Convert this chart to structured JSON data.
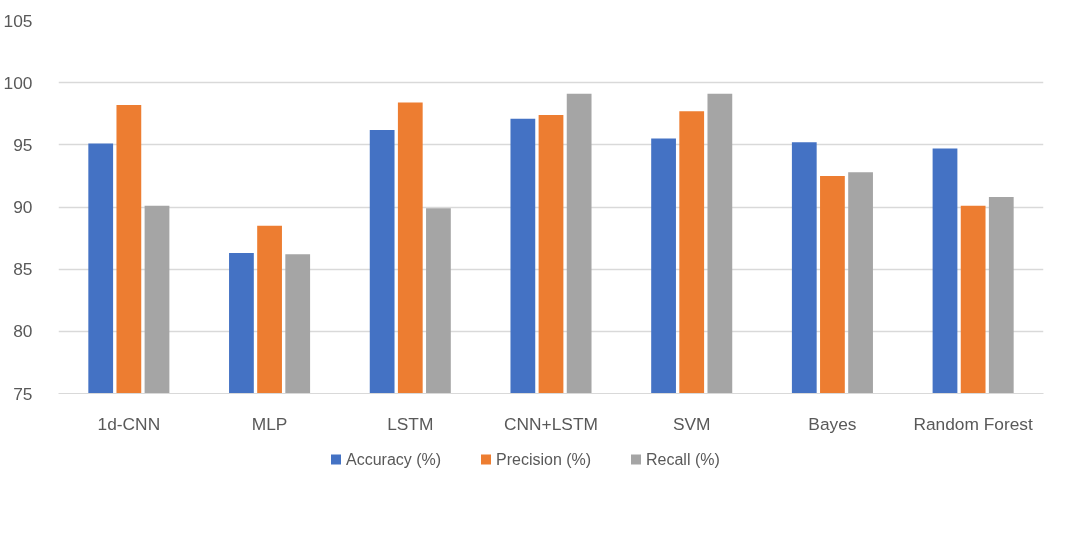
{
  "chart_data": {
    "type": "bar",
    "categories": [
      "1d-CNN",
      "MLP",
      "LSTM",
      "CNN+LSTM",
      "SVM",
      "Bayes",
      "Random Forest"
    ],
    "series": [
      {
        "name": "Accuracy (%)",
        "color": "#4472c4",
        "values": [
          95.1,
          86.3,
          96.2,
          97.1,
          95.5,
          95.2,
          94.7
        ]
      },
      {
        "name": "Precision (%)",
        "color": "#ed7d31",
        "values": [
          98.2,
          88.5,
          98.4,
          97.4,
          97.7,
          92.5,
          90.1
        ]
      },
      {
        "name": "Recall (%)",
        "color": "#a5a5a5",
        "values": [
          90.1,
          86.2,
          89.9,
          99.1,
          99.1,
          92.8,
          90.8
        ]
      }
    ],
    "ylim": [
      75,
      105
    ],
    "yticks": [
      75,
      80,
      85,
      90,
      95,
      100,
      105
    ],
    "grid": "y",
    "legend": "bottom"
  }
}
